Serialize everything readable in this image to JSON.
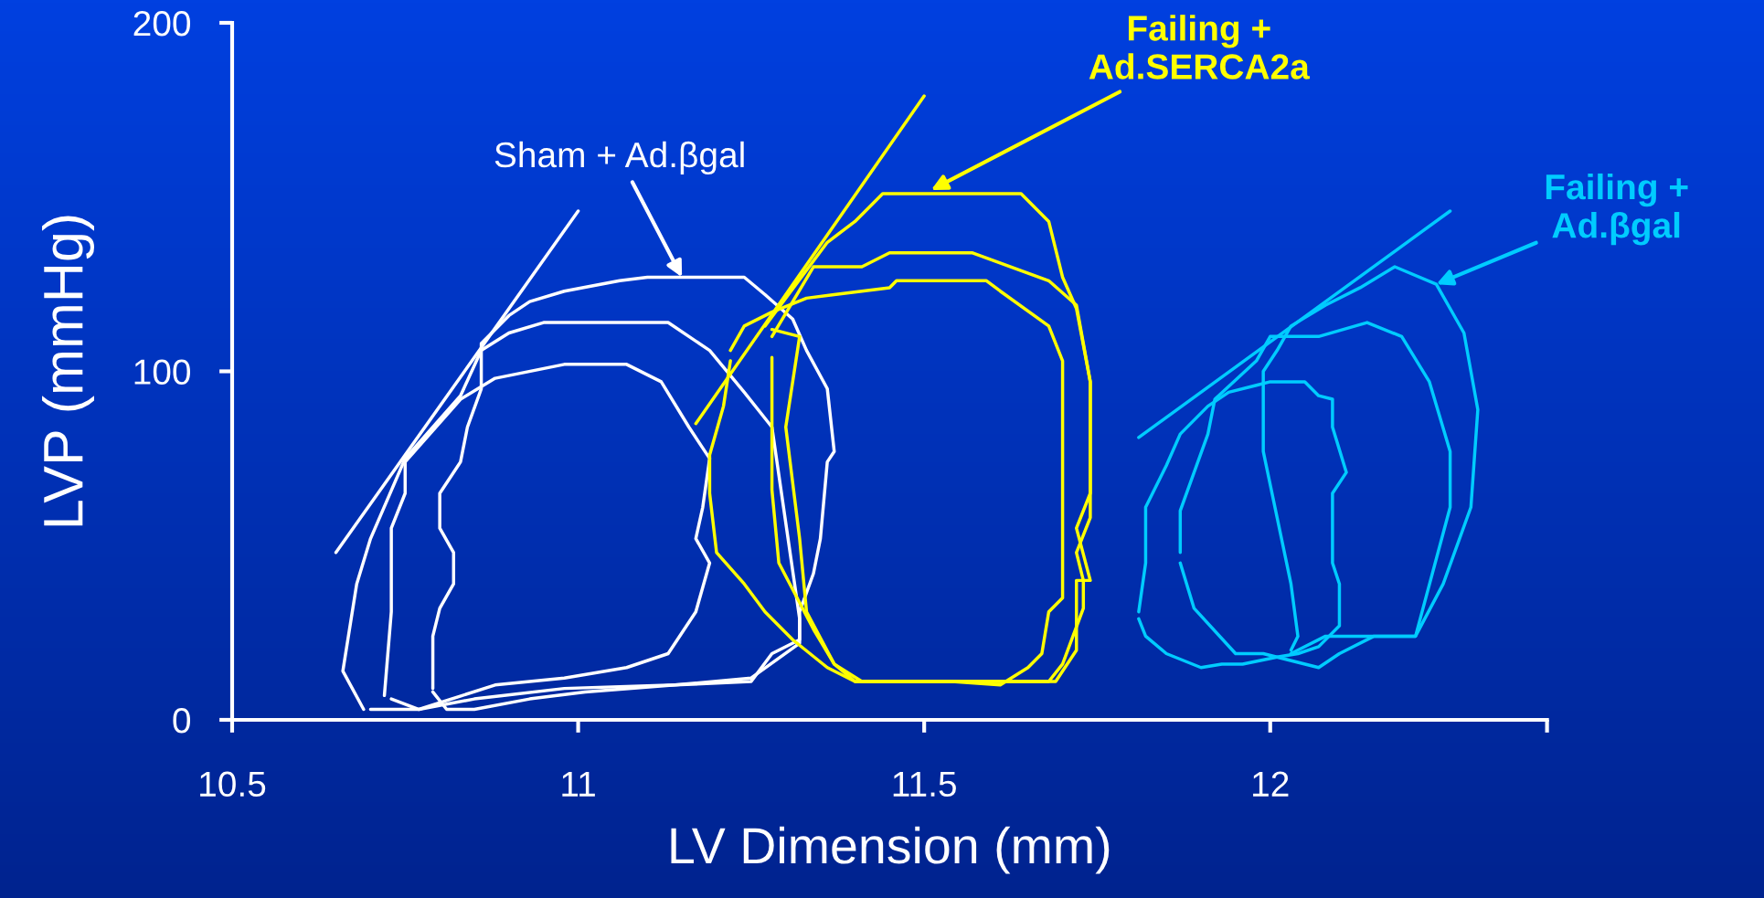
{
  "chart_data": {
    "type": "line",
    "xlabel": "LV Dimension (mm)",
    "ylabel": "LVP (mmHg)",
    "xlim": [
      10.5,
      12.4
    ],
    "ylim": [
      0,
      200
    ],
    "xticks": [
      10.5,
      11,
      11.5,
      12,
      {
        "value": 12.4,
        "label": null
      }
    ],
    "yticks": [
      0,
      100,
      200
    ],
    "annotations": [
      {
        "text": "Sham + Ad.βgal",
        "x": 11.15,
        "y": 127
      },
      {
        "text": "Failing +\nAd.SERCA2a",
        "x": 11.51,
        "y": 152
      },
      {
        "text": "Failing +\nAd.βgal",
        "x": 12.24,
        "y": 125
      }
    ],
    "series": [
      {
        "color": "#ffffff",
        "x": [
          10.65,
          11.0
        ],
        "values": [
          48,
          146
        ]
      },
      {
        "color": "#ffffff",
        "x": [
          10.69,
          10.66,
          10.68,
          10.7,
          10.75,
          10.83,
          10.86,
          10.9,
          10.95,
          11.13,
          11.19,
          11.24,
          11.28,
          11.32,
          11.32,
          11.25,
          11.14,
          10.98,
          10.85,
          10.77,
          10.7
        ],
        "values": [
          3,
          14,
          39,
          52,
          75,
          93,
          106,
          111,
          114,
          114,
          106,
          94,
          84,
          29,
          22,
          12,
          10,
          9,
          6,
          3,
          3
        ]
      },
      {
        "color": "#ffffff",
        "x": [
          10.72,
          10.73,
          10.73,
          10.75,
          10.75,
          10.83,
          10.88,
          10.98,
          11.07,
          11.12,
          11.16,
          11.19,
          11.18,
          11.17,
          11.19,
          11.17,
          11.13,
          11.07,
          10.98,
          10.88,
          10.77,
          10.73
        ],
        "values": [
          7,
          31,
          55,
          65,
          74,
          92,
          98,
          102,
          102,
          97,
          84,
          75,
          61,
          52,
          45,
          31,
          19,
          15,
          12,
          10,
          3,
          6
        ]
      },
      {
        "color": "#ffffff",
        "x": [
          10.79,
          10.79,
          10.8,
          10.82,
          10.82,
          10.8,
          10.8,
          10.83,
          10.84,
          10.86,
          10.86,
          10.9,
          10.93,
          10.98,
          11.06,
          11.1,
          11.24,
          11.27,
          11.31,
          11.33,
          11.36,
          11.37,
          11.36,
          11.35,
          11.34,
          11.32,
          11.32,
          11.28,
          11.25,
          11.14,
          11.01,
          10.93,
          10.85,
          10.81,
          10.79
        ],
        "values": [
          9,
          24,
          32,
          39,
          48,
          55,
          65,
          74,
          84,
          95,
          108,
          116,
          120,
          123,
          126,
          127,
          127,
          122,
          115,
          106,
          95,
          77,
          74,
          52,
          42,
          31,
          23,
          19,
          11,
          10,
          8,
          6,
          3,
          3,
          8
        ]
      },
      {
        "color": "#ffff00",
        "x": [
          11.17,
          11.5
        ],
        "values": [
          85,
          179
        ]
      },
      {
        "color": "#ffff00",
        "x": [
          11.27,
          11.36,
          11.4,
          11.44,
          11.64,
          11.68,
          11.7,
          11.72,
          11.74,
          11.74,
          11.72,
          11.74,
          11.72,
          11.72,
          11.69,
          11.4,
          11.37,
          11.33,
          11.32,
          11.3,
          11.32,
          11.28
        ],
        "values": [
          113,
          137,
          143,
          151,
          151,
          143,
          127,
          118,
          97,
          65,
          55,
          40,
          40,
          20,
          11,
          11,
          16,
          31,
          52,
          84,
          110,
          112
        ]
      },
      {
        "color": "#ffff00",
        "x": [
          11.28,
          11.34,
          11.41,
          11.45,
          11.57,
          11.68,
          11.72,
          11.74,
          11.74,
          11.72,
          11.73,
          11.73,
          11.7,
          11.68,
          11.41,
          11.37,
          11.34,
          11.29,
          11.28,
          11.28
        ],
        "values": [
          110,
          130,
          130,
          134,
          134,
          126,
          119,
          97,
          58,
          48,
          40,
          32,
          16,
          11,
          11,
          16,
          26,
          45,
          66,
          104
        ]
      },
      {
        "color": "#ffff00",
        "x": [
          11.22,
          11.24,
          11.28,
          11.33,
          11.37,
          11.41,
          11.45,
          11.46,
          11.59,
          11.61,
          11.68,
          11.7,
          11.7,
          11.7,
          11.7,
          11.7,
          11.7,
          11.68,
          11.67,
          11.65,
          11.61,
          11.54,
          11.4,
          11.36,
          11.31,
          11.27,
          11.24,
          11.2,
          11.19,
          11.19,
          11.21,
          11.22
        ],
        "values": [
          106,
          113,
          117,
          121,
          122,
          123,
          124,
          126,
          126,
          123,
          113,
          103,
          90,
          74,
          48,
          42,
          35,
          31,
          19,
          15,
          10,
          11,
          11,
          15,
          23,
          31,
          39,
          48,
          65,
          76,
          90,
          103
        ]
      },
      {
        "color": "#00ccff",
        "x": [
          11.81,
          12.26
        ],
        "values": [
          81,
          146
        ]
      },
      {
        "color": "#00ccff",
        "x": [
          12.03,
          12.08,
          12.21,
          12.25,
          12.29,
          12.3,
          12.28,
          12.24,
          12.18,
          12.13,
          12.08,
          12.03,
          12.01,
          11.99,
          11.99,
          12.03,
          12.04,
          12.03
        ],
        "values": [
          19,
          24,
          24,
          39,
          61,
          89,
          111,
          125,
          130,
          124,
          119,
          113,
          106,
          100,
          77,
          39,
          24,
          20
        ]
      },
      {
        "color": "#00ccff",
        "x": [
          11.87,
          11.87,
          11.91,
          11.92,
          11.98,
          12.0,
          12.07,
          12.14,
          12.19,
          12.23,
          12.26,
          12.26,
          12.21,
          12.15,
          12.1,
          12.07,
          11.99,
          11.95,
          11.89,
          11.87
        ],
        "values": [
          48,
          60,
          82,
          92,
          103,
          110,
          110,
          114,
          110,
          97,
          77,
          61,
          24,
          24,
          19,
          15,
          19,
          19,
          32,
          45
        ]
      },
      {
        "color": "#00ccff",
        "x": [
          11.81,
          11.82,
          11.82,
          11.85,
          11.87,
          11.91,
          11.94,
          11.98,
          12.0,
          12.05,
          12.07,
          12.09,
          12.09,
          12.11,
          12.09,
          12.09,
          12.09,
          12.1,
          12.1,
          12.07,
          12.04,
          12.01,
          11.96,
          11.93,
          11.9,
          11.85,
          11.82,
          11.81
        ],
        "values": [
          31,
          45,
          61,
          73,
          82,
          90,
          94,
          96,
          97,
          97,
          93,
          92,
          84,
          71,
          65,
          55,
          45,
          39,
          27,
          21,
          19,
          18,
          16,
          16,
          15,
          19,
          24,
          29
        ]
      }
    ]
  }
}
